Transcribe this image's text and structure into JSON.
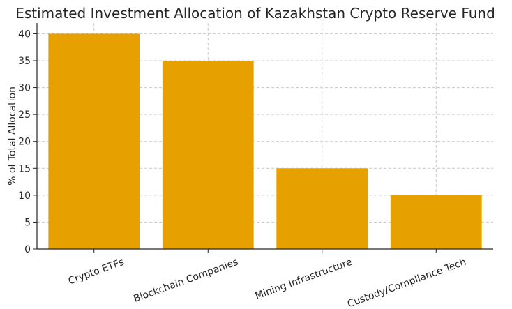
{
  "chart_data": {
    "type": "bar",
    "title": "Estimated Investment Allocation of Kazakhstan Crypto Reserve Fund",
    "xlabel": "",
    "ylabel": "% of Total Allocation",
    "categories": [
      "Crypto ETFs",
      "Blockchain Companies",
      "Mining Infrastructure",
      "Custody/Compliance Tech"
    ],
    "values": [
      40,
      35,
      15,
      10
    ],
    "ylim": [
      0,
      42
    ],
    "yticks": [
      0,
      5,
      10,
      15,
      20,
      25,
      30,
      35,
      40
    ],
    "grid": true,
    "bar_color": "#e6a000",
    "x_tick_rotation_deg": -20
  }
}
